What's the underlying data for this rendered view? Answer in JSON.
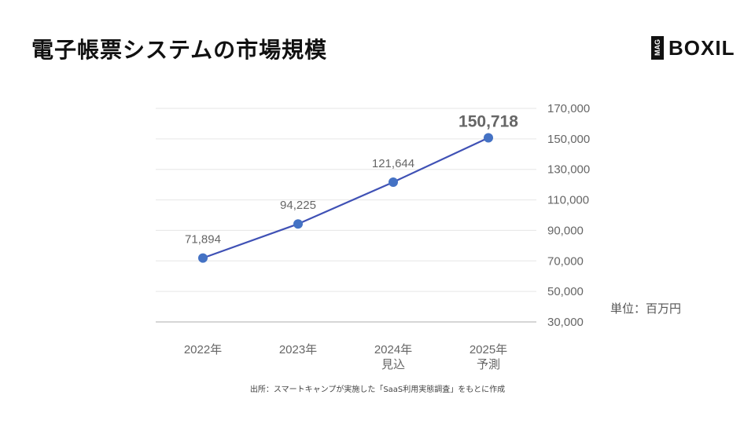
{
  "title": "電子帳票システムの市場規模",
  "logo": {
    "mag": "MAG",
    "text": "BOXIL"
  },
  "unit_label": "単位：百万円",
  "source": "出所：スマートキャンプが実施した「SaaS利用実態調査」をもとに作成",
  "colors": {
    "line": "#3f51b5",
    "point": "#4472c4",
    "grid": "#e6e6e6",
    "axis": "#bdbdbd",
    "label": "#666666",
    "highlight": "#666666"
  },
  "chart_data": {
    "type": "line",
    "categories": [
      {
        "year": "2022年",
        "note": ""
      },
      {
        "year": "2023年",
        "note": ""
      },
      {
        "year": "2024年",
        "note": "見込"
      },
      {
        "year": "2025年",
        "note": "予測"
      }
    ],
    "values": [
      71894,
      94225,
      121644,
      150718
    ],
    "data_labels": [
      "71,894",
      "94,225",
      "121,644",
      "150,718"
    ],
    "highlight_index": 3,
    "ylim": [
      30000,
      170000
    ],
    "yticks": [
      {
        "value": 30000,
        "label": "30,000"
      },
      {
        "value": 50000,
        "label": "50,000"
      },
      {
        "value": 70000,
        "label": "70,000"
      },
      {
        "value": 90000,
        "label": "90,000"
      },
      {
        "value": 110000,
        "label": "110,000"
      },
      {
        "value": 130000,
        "label": "130,000"
      },
      {
        "value": 150000,
        "label": "150,000"
      },
      {
        "value": 170000,
        "label": "170,000"
      }
    ],
    "y_axis_position": "right",
    "grid": true,
    "title": "",
    "xlabel": "",
    "ylabel": ""
  }
}
